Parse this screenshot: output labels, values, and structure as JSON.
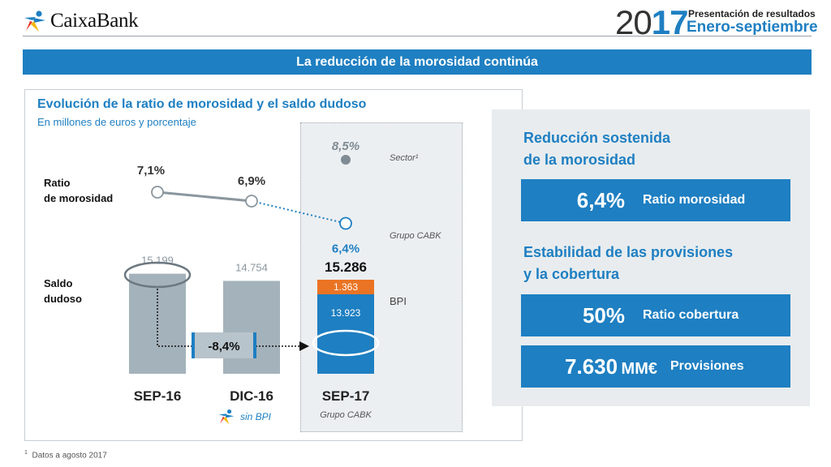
{
  "header": {
    "brand": "CaixaBank",
    "year_prefix": "20",
    "year_suffix": "17",
    "subtitle_top": "Presentación de resultados",
    "subtitle_period": "Enero-septiembre",
    "banner": "La reducción de la morosidad continúa"
  },
  "chart_data": {
    "type": "line",
    "title": "Evolución de la ratio de morosidad y el saldo dudoso",
    "subtitle": "En millones de euros y porcentaje",
    "categories": [
      "SEP-16",
      "DIC-16",
      "SEP-17"
    ],
    "row_labels": {
      "ratio_line1": "Ratio",
      "ratio_line2": "de morosidad",
      "saldo_line1": "Saldo",
      "saldo_line2": "dudoso"
    },
    "ratio_series": [
      {
        "name": "Grupo CABK",
        "values": [
          7.1,
          6.9,
          6.4
        ],
        "labels": [
          "7,1%",
          "6,9%",
          "6,4%"
        ]
      },
      {
        "name": "Sector¹",
        "category": "SEP-17",
        "value": 8.5,
        "label": "8,5%"
      }
    ],
    "bars": [
      {
        "category": "SEP-16",
        "total": 15199,
        "label": "15.199"
      },
      {
        "category": "DIC-16",
        "total": 14754,
        "label": "14.754"
      },
      {
        "category": "SEP-17",
        "total": 15286,
        "label": "15.286",
        "stack": [
          {
            "name": "Grupo CABK",
            "value": 13923,
            "label": "13.923"
          },
          {
            "name": "BPI",
            "value": 1363,
            "label": "1.363"
          }
        ]
      }
    ],
    "change_label": "-8,4%",
    "legend_sin_bpi": "sin BPI",
    "sep17_caption": "Grupo CABK",
    "ratio_sector_name": "Sector¹",
    "ratio_group_name": "Grupo CABK",
    "bpi_name": "BPI",
    "colors": {
      "accent": "#1e7fc2",
      "bar_grey": "#a4b2bb",
      "bpi": "#ea7424",
      "sector_dot": "#7f8b93",
      "line_grey": "#8a969e"
    }
  },
  "right_panel": {
    "heading1_line1": "Reducción sostenida",
    "heading1_line2": "de la morosidad",
    "kpi1": {
      "value": "6,4%",
      "label": "Ratio morosidad"
    },
    "heading2_line1": "Estabilidad de las provisiones",
    "heading2_line2": "y la cobertura",
    "kpi2": {
      "value": "50%",
      "label": "Ratio cobertura"
    },
    "kpi3": {
      "value": "7.630",
      "unit": "MM€",
      "label": "Provisiones"
    }
  },
  "footnote": {
    "marker": "1",
    "text": "Datos a agosto 2017"
  }
}
